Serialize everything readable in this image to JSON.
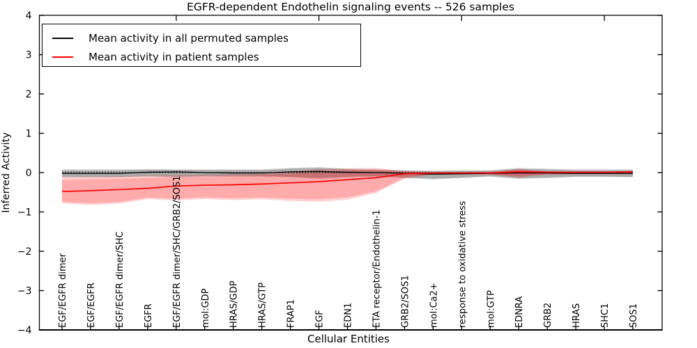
{
  "title": "EGFR-dependent Endothelin signaling events -- 526 samples",
  "legend": {
    "items": [
      {
        "label": "Mean activity in all permuted samples",
        "color": "#000000"
      },
      {
        "label": "Mean activity in patient samples",
        "color": "#ff0000"
      }
    ]
  },
  "chart_data": {
    "type": "line",
    "title": "EGFR-dependent Endothelin signaling events -- 526 samples",
    "xlabel": "Cellular Entities",
    "ylabel": "Inferred Activity",
    "ylim": [
      -4,
      4
    ],
    "ytick_labels": [
      "4",
      "3",
      "2",
      "1",
      "0",
      "−1",
      "−2",
      "−3",
      "−4"
    ],
    "ytick_values": [
      4,
      3,
      2,
      1,
      0,
      -1,
      -2,
      -3,
      -4
    ],
    "grid": false,
    "legend_position": "upper left",
    "zero_reference_line": 0,
    "categories": [
      "EGF/EGFR dimer",
      "EGF/EGFR",
      "EGF/EGFR dimer/SHC",
      "EGFR",
      "EGF/EGFR dimer/SHC/GRB2/SOS1",
      "mol:GDP",
      "HRAS/GDP",
      "HRAS/GTP",
      "FRAP1",
      "EGF",
      "EDN1",
      "ETA receptor/Endothelin-1",
      "GRB2/SOS1",
      "mol:Ca2+",
      "response to oxidative stress",
      "mol:GTP",
      "EDNRA",
      "GRB2",
      "HRAS",
      "SHC1",
      "SOS1"
    ],
    "series": [
      {
        "name": "Mean activity in all permuted samples",
        "color": "#000000",
        "band_color_rgb": "0,0,0",
        "values": [
          -0.02,
          -0.02,
          -0.02,
          0.01,
          0.02,
          0.0,
          -0.01,
          -0.01,
          0.02,
          0.03,
          0.01,
          0.0,
          -0.02,
          -0.04,
          -0.03,
          -0.02,
          -0.01,
          -0.01,
          -0.02,
          -0.02,
          -0.02
        ],
        "band_upper": [
          0.08,
          0.08,
          0.08,
          0.09,
          0.08,
          0.08,
          0.08,
          0.08,
          0.12,
          0.14,
          0.1,
          0.08,
          0.06,
          0.05,
          0.06,
          0.06,
          0.12,
          0.1,
          0.08,
          0.08,
          0.08
        ],
        "band_lower": [
          -0.12,
          -0.12,
          -0.12,
          -0.1,
          -0.12,
          -0.1,
          -0.1,
          -0.1,
          -0.12,
          -0.16,
          -0.12,
          -0.1,
          -0.14,
          -0.17,
          -0.14,
          -0.1,
          -0.16,
          -0.14,
          -0.11,
          -0.11,
          -0.12
        ]
      },
      {
        "name": "Mean activity in patient samples",
        "color": "#ff0000",
        "band_color_rgb": "255,0,0",
        "values": [
          -0.48,
          -0.46,
          -0.43,
          -0.4,
          -0.34,
          -0.32,
          -0.31,
          -0.29,
          -0.26,
          -0.23,
          -0.18,
          -0.13,
          -0.03,
          -0.01,
          -0.01,
          -0.01,
          0.02,
          0.01,
          0.01,
          0.01,
          0.02
        ],
        "band_upper": [
          -0.11,
          -0.1,
          -0.09,
          -0.07,
          -0.06,
          -0.05,
          -0.03,
          -0.01,
          0.03,
          0.08,
          0.11,
          0.12,
          0.04,
          0.01,
          0.01,
          0.02,
          0.09,
          0.03,
          0.02,
          0.02,
          0.02
        ],
        "band_lower": [
          -0.78,
          -0.82,
          -0.79,
          -0.67,
          -0.71,
          -0.67,
          -0.7,
          -0.68,
          -0.72,
          -0.74,
          -0.69,
          -0.52,
          -0.15,
          -0.04,
          -0.04,
          -0.05,
          -0.12,
          -0.05,
          -0.04,
          -0.04,
          -0.04
        ]
      }
    ]
  }
}
